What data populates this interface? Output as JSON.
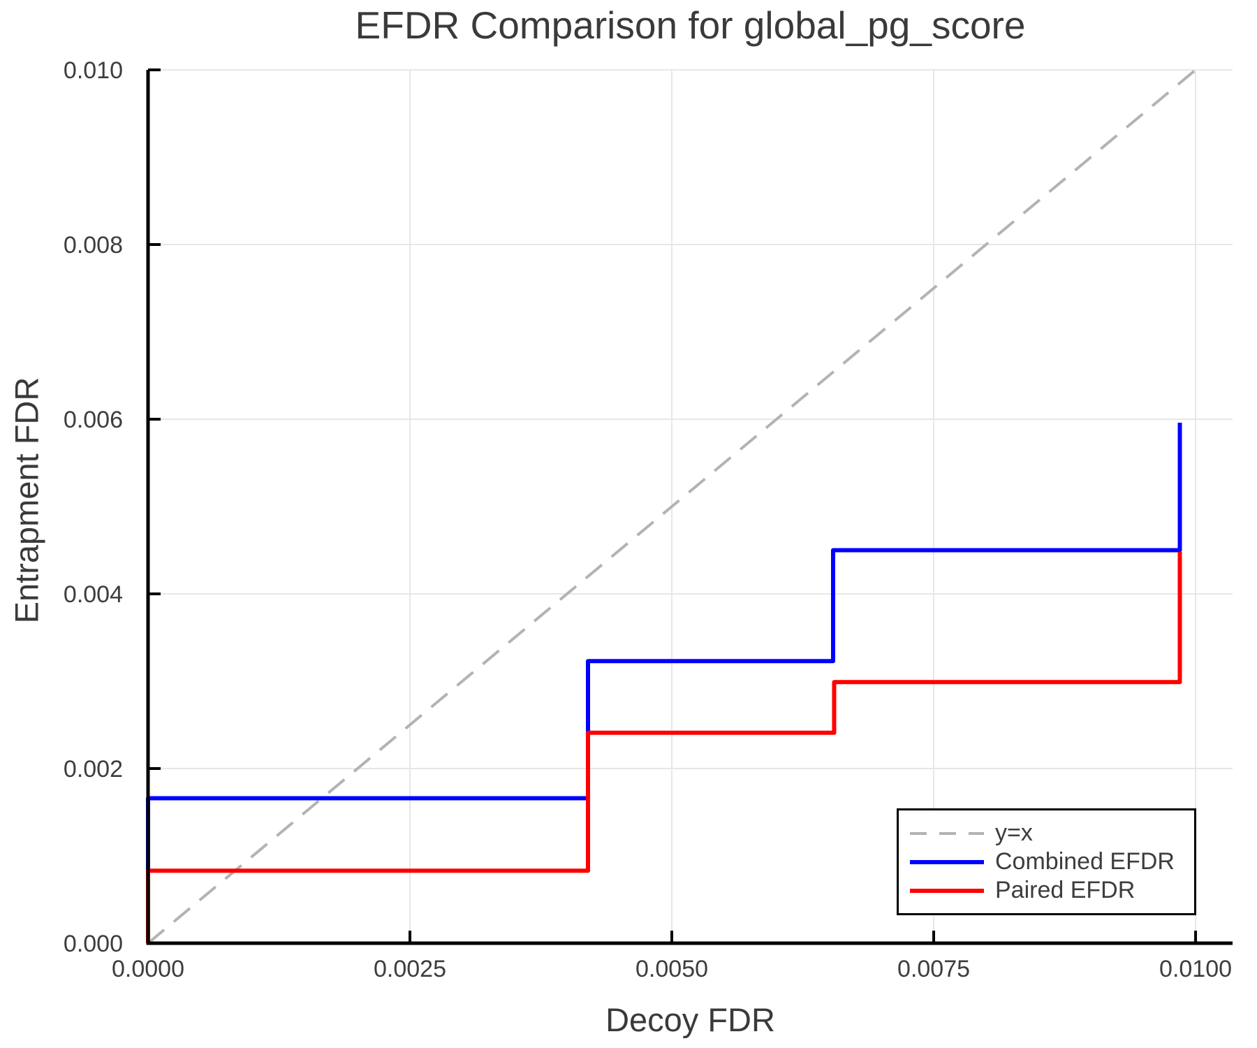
{
  "chart_data": {
    "type": "line",
    "subtype": "step",
    "title": "EFDR Comparison for global_pg_score",
    "xlabel": "Decoy FDR",
    "ylabel": "Entrapment FDR",
    "xlim": [
      0,
      0.010353
    ],
    "ylim": [
      0,
      0.01
    ],
    "grid": true,
    "x_ticks": {
      "values": [
        0,
        0.0025,
        0.005,
        0.0075,
        0.01
      ],
      "labels": [
        "0.0000",
        "0.0025",
        "0.0050",
        "0.0075",
        "0.0100"
      ]
    },
    "y_ticks": {
      "values": [
        0,
        0.002,
        0.004,
        0.006,
        0.008,
        0.01
      ],
      "labels": [
        "0.000",
        "0.002",
        "0.004",
        "0.006",
        "0.008",
        "0.010"
      ]
    },
    "reference_line": {
      "label": "y=x",
      "from": [
        0,
        0
      ],
      "to": [
        0.01,
        0.01
      ],
      "color": "#b3b3b3",
      "style": "dashed"
    },
    "series": [
      {
        "name": "Combined EFDR",
        "color": "#0000ff",
        "x": [
          0,
          0,
          0.0042,
          0.0042,
          0.00654,
          0.00654,
          0.00985,
          0.00985
        ],
        "y": [
          0,
          0.00166,
          0.00166,
          0.00323,
          0.00323,
          0.0045,
          0.0045,
          0.00596
        ]
      },
      {
        "name": "Paired EFDR",
        "color": "#ff0000",
        "x": [
          0,
          0,
          0.0042,
          0.0042,
          0.00655,
          0.00655,
          0.00985,
          0.00985
        ],
        "y": [
          0,
          0.00083,
          0.00083,
          0.00241,
          0.00241,
          0.00299,
          0.00299,
          0.00448
        ]
      }
    ],
    "legend": {
      "position": "lower right",
      "entries": [
        {
          "label": "y=x",
          "color": "#b3b3b3",
          "style": "dashed"
        },
        {
          "label": "Combined EFDR",
          "color": "#0000ff",
          "style": "solid"
        },
        {
          "label": "Paired EFDR",
          "color": "#ff0000",
          "style": "solid"
        }
      ]
    },
    "style": {
      "background": "#ffffff",
      "grid_color": "#e7e7e7",
      "spine_color": "#000000",
      "text_color": "#3a3a3a",
      "tick_label_color": "#3d3d3d"
    }
  }
}
